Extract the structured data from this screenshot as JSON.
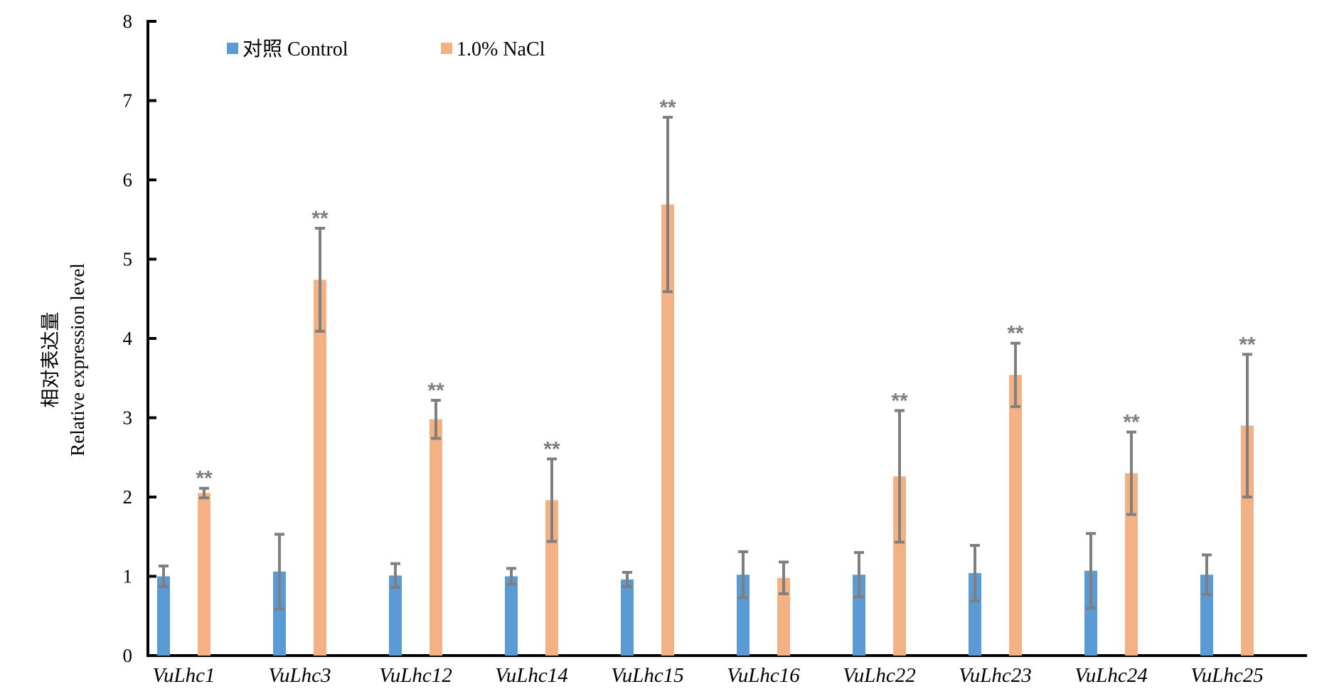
{
  "chart_data": {
    "type": "bar",
    "title": "",
    "xlabel": "",
    "ylabel_lines": [
      "相对表达量",
      "Relative expression level"
    ],
    "ylim": [
      0,
      8
    ],
    "yticks": [
      "0",
      "1",
      "2",
      "3",
      "4",
      "5",
      "6",
      "7",
      "8"
    ],
    "grid": false,
    "legend_position": "top-left",
    "categories": [
      "VuLhc1",
      "VuLhc3",
      "VuLhc12",
      "VuLhc14",
      "VuLhc15",
      "VuLhc16",
      "VuLhc22",
      "VuLhc23",
      "VuLhc24",
      "VuLhc25"
    ],
    "series": [
      {
        "name": "对照 Control",
        "color": "#5b9bd5",
        "values": [
          1.0,
          1.06,
          1.01,
          1.0,
          0.96,
          1.02,
          1.02,
          1.04,
          1.07,
          1.02
        ],
        "errors": [
          0.13,
          0.47,
          0.15,
          0.1,
          0.09,
          0.29,
          0.28,
          0.35,
          0.47,
          0.25
        ]
      },
      {
        "name": "1.0% NaCl",
        "color": "#f4b183",
        "values": [
          2.05,
          4.74,
          2.98,
          1.96,
          5.69,
          0.98,
          2.26,
          3.54,
          2.3,
          2.9
        ],
        "errors": [
          0.06,
          0.65,
          0.24,
          0.52,
          1.1,
          0.2,
          0.83,
          0.4,
          0.52,
          0.9
        ]
      }
    ],
    "significance": [
      "**",
      "**",
      "**",
      "**",
      "**",
      "",
      "**",
      "**",
      "**",
      "**"
    ],
    "error_bar_color": "#7f7f7f"
  }
}
